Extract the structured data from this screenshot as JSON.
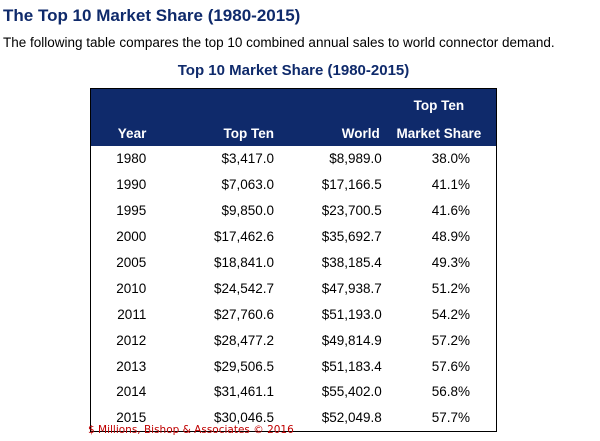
{
  "heading": "The Top 10 Market Share (1980-2015)",
  "intro": "The following table compares the top 10 combined annual sales to world connector demand.",
  "table": {
    "title": "Top 10 Market Share (1980-2015)",
    "header_top": [
      "",
      "",
      "",
      "Top Ten"
    ],
    "header_bottom": [
      "Year",
      "Top Ten",
      "World",
      "Market Share"
    ],
    "rows": [
      [
        "1980",
        "$3,417.0",
        "$8,989.0",
        "38.0%"
      ],
      [
        "1990",
        "$7,063.0",
        "$17,166.5",
        "41.1%"
      ],
      [
        "1995",
        "$9,850.0",
        "$23,700.5",
        "41.6%"
      ],
      [
        "2000",
        "$17,462.6",
        "$35,692.7",
        "48.9%"
      ],
      [
        "2005",
        "$18,841.0",
        "$38,185.4",
        "49.3%"
      ],
      [
        "2010",
        "$24,542.7",
        "$47,938.7",
        "51.2%"
      ],
      [
        "2011",
        "$27,760.6",
        "$51,193.0",
        "54.2%"
      ],
      [
        "2012",
        "$28,477.2",
        "$49,814.9",
        "57.2%"
      ],
      [
        "2013",
        "$29,506.5",
        "$51,183.4",
        "57.6%"
      ],
      [
        "2014",
        "$31,461.1",
        "$55,402.0",
        "56.8%"
      ],
      [
        "2015",
        "$30,046.5",
        "$52,049.8",
        "57.7%"
      ]
    ]
  },
  "source_note": "$ Millions, Bishop & Associates © 2016",
  "colors": {
    "header_bg": "#0f2a6b",
    "heading_text": "#0f2a6b",
    "source_text": "#c00000"
  }
}
